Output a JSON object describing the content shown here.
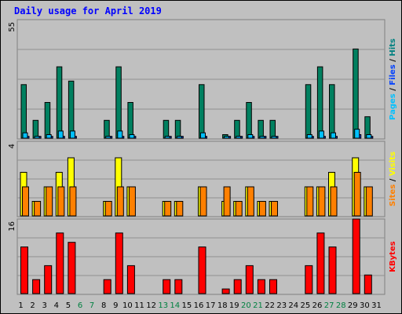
{
  "chart_data": {
    "type": "bar",
    "title": "Daily usage for April 2019",
    "categories": [
      "1",
      "2",
      "3",
      "4",
      "5",
      "6",
      "7",
      "8",
      "9",
      "10",
      "11",
      "12",
      "13",
      "14",
      "15",
      "16",
      "17",
      "18",
      "19",
      "20",
      "21",
      "22",
      "23",
      "24",
      "25",
      "26",
      "27",
      "28",
      "29",
      "30",
      "31"
    ],
    "weekend_days": [
      "6",
      "7",
      "13",
      "14",
      "20",
      "21",
      "27",
      "28"
    ],
    "panels": [
      {
        "name": "hits_files_pages",
        "ymax": 55,
        "ymax_label": "55",
        "side_label": [
          {
            "text": "Pages",
            "color": "#00c0ff"
          },
          {
            "text": " / ",
            "color": "#000000"
          },
          {
            "text": "Files",
            "color": "#0040ff"
          },
          {
            "text": " / ",
            "color": "#000000"
          },
          {
            "text": "Hits",
            "color": "#008080"
          }
        ],
        "series": [
          {
            "name": "Hits",
            "color": "#008060",
            "values": [
              30,
              10,
              20,
              40,
              32,
              0,
              0,
              10,
              40,
              20,
              0,
              0,
              10,
              10,
              0,
              30,
              0,
              2,
              10,
              20,
              10,
              10,
              0,
              0,
              30,
              40,
              30,
              0,
              50,
              12,
              0
            ]
          },
          {
            "name": "Files",
            "color": "#0040ff",
            "values": [
              1,
              1,
              1,
              1,
              1,
              0,
              0,
              1,
              1,
              1,
              0,
              0,
              1,
              1,
              0,
              1,
              0,
              1,
              1,
              1,
              1,
              1,
              0,
              0,
              1,
              1,
              1,
              0,
              2,
              1,
              0
            ]
          },
          {
            "name": "Pages",
            "color": "#00c0ff",
            "values": [
              3,
              1,
              2,
              4,
              4,
              0,
              0,
              1,
              4,
              2,
              0,
              0,
              1,
              1,
              0,
              3,
              0,
              1,
              1,
              2,
              1,
              1,
              0,
              0,
              2,
              4,
              3,
              0,
              5,
              2,
              0
            ]
          }
        ]
      },
      {
        "name": "visits_sites",
        "ymax": 4,
        "ymax_label": "4",
        "side_label": [
          {
            "text": "Sites",
            "color": "#ff8000"
          },
          {
            "text": " / ",
            "color": "#000000"
          },
          {
            "text": "Visits",
            "color": "#ffff00"
          }
        ],
        "series": [
          {
            "name": "Visits",
            "color": "#ffff00",
            "values": [
              3,
              1,
              2,
              3,
              4,
              0,
              0,
              1,
              4,
              2,
              0,
              0,
              1,
              1,
              0,
              2,
              0,
              1,
              1,
              2,
              1,
              1,
              0,
              0,
              2,
              2,
              3,
              0,
              4,
              2,
              0
            ]
          },
          {
            "name": "Sites",
            "color": "#ff8000",
            "values": [
              2,
              1,
              2,
              2,
              2,
              0,
              0,
              1,
              2,
              2,
              0,
              0,
              1,
              1,
              0,
              2,
              0,
              2,
              1,
              2,
              1,
              1,
              0,
              0,
              2,
              2,
              2,
              0,
              3,
              2,
              0
            ]
          }
        ]
      },
      {
        "name": "kbytes",
        "ymax": 16,
        "ymax_label": "16",
        "side_label": [
          {
            "text": "KBytes",
            "color": "#ff0000"
          }
        ],
        "series": [
          {
            "name": "KBytes",
            "color": "#ff0000",
            "values": [
              10,
              3,
              6,
              13,
              11,
              0,
              0,
              3,
              13,
              6,
              0,
              0,
              3,
              3,
              0,
              10,
              0,
              1,
              3,
              6,
              3,
              3,
              0,
              0,
              6,
              13,
              10,
              0,
              16,
              4,
              0
            ]
          }
        ]
      }
    ]
  }
}
